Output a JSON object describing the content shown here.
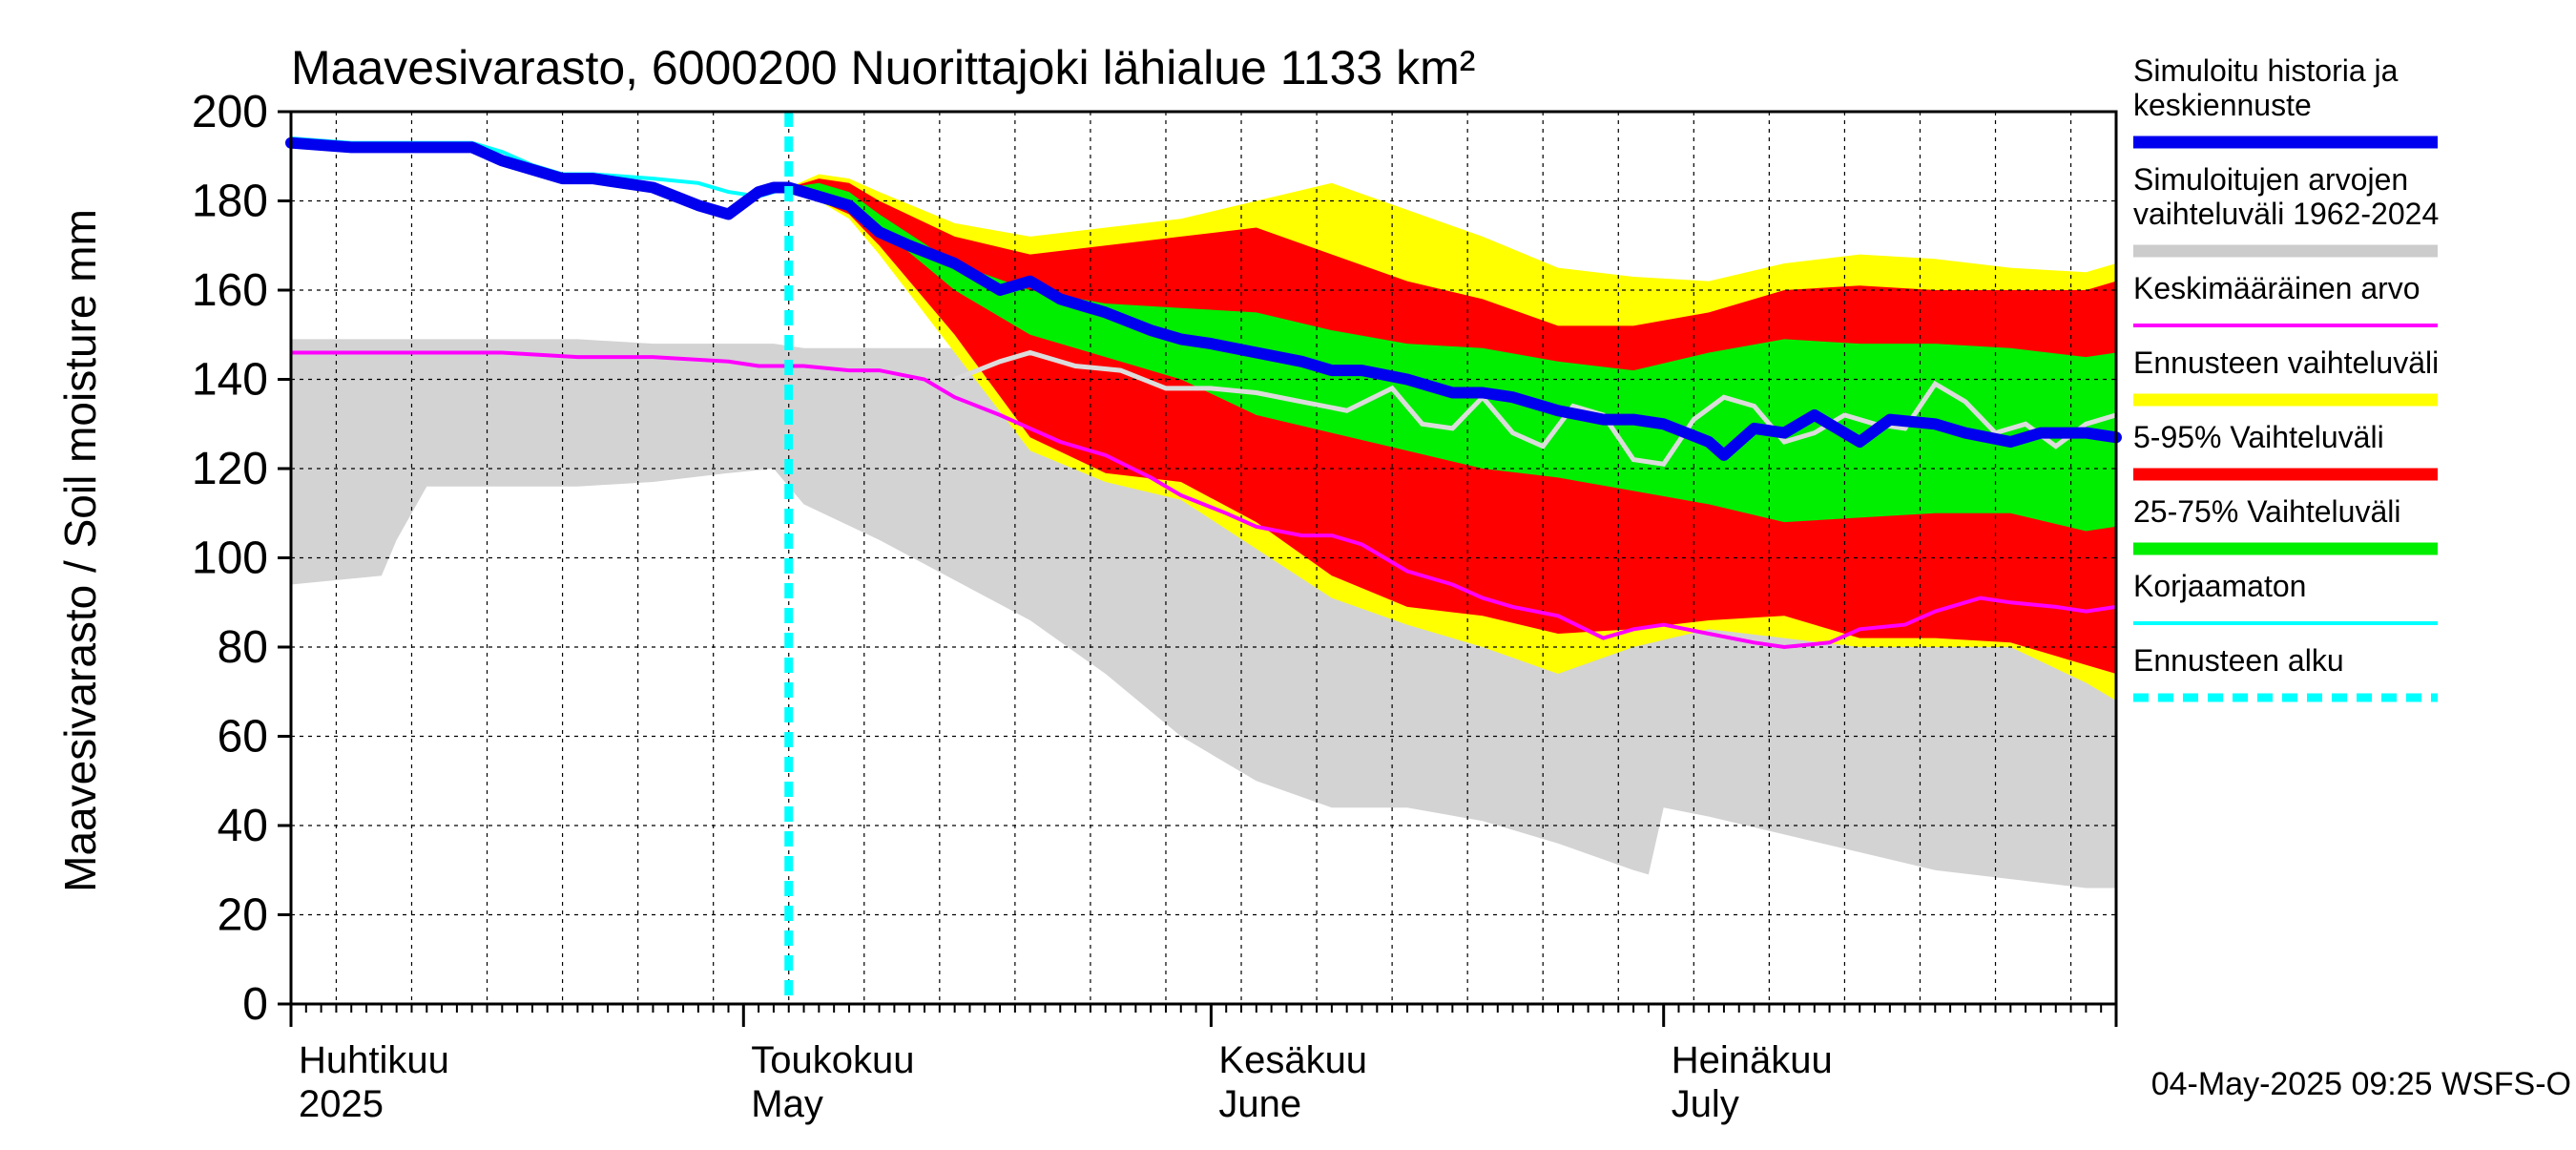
{
  "chart_data": {
    "type": "area",
    "title": "Maavesivarasto, 6000200 Nuorittajoki lähialue 1133 km²",
    "ylabel": "Maavesivarasto / Soil moisture   mm",
    "ylim": [
      0,
      200
    ],
    "yticks": [
      0,
      20,
      40,
      60,
      80,
      100,
      120,
      140,
      160,
      180,
      200
    ],
    "x_unit": "day of year 2025",
    "xlim": [
      91,
      212
    ],
    "month_labels": [
      {
        "fi": "Huhtikuu",
        "en": "2025",
        "start_day": 91
      },
      {
        "fi": "Toukokuu",
        "en": "May",
        "start_day": 121
      },
      {
        "fi": "Kesäkuu",
        "en": "June",
        "start_day": 152
      },
      {
        "fi": "Heinäkuu",
        "en": "July",
        "start_day": 182
      }
    ],
    "forecast_start_day": 124,
    "timestamp": "04-May-2025 09:25 WSFS-O",
    "legend": [
      {
        "label": "Simuloitu historia ja keskiennuste",
        "lines": [
          "Simuloitu historia ja",
          "keskiennuste"
        ],
        "color": "#0000ee",
        "style": "thick"
      },
      {
        "label": "Simuloitujen arvojen vaihteluväli 1962-2024",
        "lines": [
          "Simuloitujen arvojen",
          "vaihteluväli 1962-2024"
        ],
        "color": "#cccccc",
        "style": "thick"
      },
      {
        "label": "Keskimääräinen arvo",
        "lines": [
          "Keskimääräinen arvo"
        ],
        "color": "#ff00ff",
        "style": "thin"
      },
      {
        "label": "Ennusteen vaihteluväli",
        "lines": [
          "Ennusteen vaihteluväli"
        ],
        "color": "#ffff00",
        "style": "thick"
      },
      {
        "label": "5-95% Vaihteluväli",
        "lines": [
          "5-95% Vaihteluväli"
        ],
        "color": "#ff0000",
        "style": "thick"
      },
      {
        "label": "25-75% Vaihteluväli",
        "lines": [
          "25-75% Vaihteluväli"
        ],
        "color": "#00ee00",
        "style": "thick"
      },
      {
        "label": "Korjaamaton",
        "lines": [
          "Korjaamaton"
        ],
        "color": "#00ffff",
        "style": "thin"
      },
      {
        "label": "Ennusteen alku",
        "lines": [
          "Ennusteen alku"
        ],
        "color": "#00ffff",
        "style": "dashed"
      }
    ],
    "series": {
      "hist_range": {
        "name": "Simuloitujen arvojen vaihteluväli 1962-2024",
        "x": [
          91,
          94,
          97,
          98,
          100,
          101,
          105,
          110,
          115,
          120,
          123,
          125,
          130,
          135,
          140,
          145,
          150,
          155,
          160,
          165,
          170,
          175,
          180,
          181,
          182,
          185,
          190,
          195,
          200,
          205,
          210,
          212
        ],
        "upper": [
          149,
          149,
          149,
          149,
          149,
          149,
          149,
          149,
          148,
          148,
          148,
          147,
          147,
          147,
          147,
          147,
          147,
          146,
          146,
          146,
          145,
          145,
          145,
          145,
          145,
          145,
          145,
          145,
          145,
          145,
          145,
          145
        ],
        "lower": [
          94,
          95,
          96,
          104,
          116,
          116,
          116,
          116,
          117,
          119,
          120,
          112,
          104,
          95,
          86,
          74,
          60,
          50,
          44,
          44,
          41,
          36,
          30,
          29,
          44,
          42,
          38,
          34,
          30,
          28,
          26,
          26
        ]
      },
      "forecast_yellow": {
        "name": "Ennusteen vaihteluväli",
        "x": [
          124,
          126,
          128,
          130,
          135,
          140,
          145,
          150,
          155,
          160,
          165,
          170,
          175,
          180,
          185,
          190,
          195,
          200,
          205,
          210,
          212
        ],
        "upper": [
          183,
          186,
          185,
          182,
          175,
          172,
          174,
          176,
          180,
          184,
          178,
          172,
          165,
          163,
          162,
          166,
          168,
          167,
          165,
          164,
          166
        ],
        "lower": [
          183,
          180,
          176,
          168,
          146,
          124,
          117,
          113,
          102,
          91,
          85,
          80,
          74,
          80,
          84,
          82,
          80,
          80,
          80,
          72,
          68
        ]
      },
      "forecast_red": {
        "name": "5-95% Vaihteluväli",
        "x": [
          124,
          126,
          128,
          130,
          135,
          140,
          145,
          150,
          155,
          160,
          165,
          170,
          175,
          180,
          185,
          190,
          195,
          200,
          205,
          210,
          212
        ],
        "upper": [
          183,
          185,
          184,
          180,
          172,
          168,
          170,
          172,
          174,
          168,
          162,
          158,
          152,
          152,
          155,
          160,
          161,
          160,
          160,
          160,
          162
        ],
        "lower": [
          183,
          180,
          177,
          170,
          150,
          127,
          119,
          117,
          108,
          96,
          89,
          87,
          83,
          84,
          86,
          87,
          82,
          82,
          81,
          76,
          74
        ]
      },
      "forecast_green": {
        "name": "25-75% Vaihteluväli",
        "x": [
          124,
          126,
          128,
          130,
          135,
          140,
          145,
          150,
          155,
          160,
          165,
          170,
          175,
          180,
          185,
          190,
          195,
          200,
          205,
          210,
          212
        ],
        "upper": [
          183,
          184,
          182,
          177,
          166,
          160,
          157,
          156,
          155,
          151,
          148,
          147,
          144,
          142,
          146,
          149,
          148,
          148,
          147,
          145,
          146
        ],
        "lower": [
          183,
          182,
          180,
          174,
          160,
          150,
          145,
          140,
          132,
          128,
          124,
          120,
          118,
          115,
          112,
          108,
          109,
          110,
          110,
          106,
          107
        ]
      },
      "simulated": {
        "name": "Simuloitu historia ja keskiennuste",
        "x": [
          91,
          95,
          100,
          103,
          105,
          107,
          109,
          111,
          115,
          118,
          120,
          122,
          123,
          124,
          125,
          128,
          130,
          132,
          135,
          138,
          140,
          142,
          145,
          148,
          150,
          152,
          155,
          158,
          160,
          162,
          165,
          168,
          170,
          172,
          175,
          178,
          180,
          182,
          185,
          186,
          188,
          190,
          192,
          195,
          197,
          200,
          202,
          205,
          207,
          210,
          212
        ],
        "y": [
          193,
          192,
          192,
          192,
          189,
          187,
          185,
          185,
          183,
          179,
          177,
          182,
          183,
          183,
          182,
          179,
          173,
          170,
          166,
          160,
          162,
          158,
          155,
          151,
          149,
          148,
          146,
          144,
          142,
          142,
          140,
          137,
          137,
          136,
          133,
          131,
          131,
          130,
          126,
          123,
          129,
          128,
          132,
          126,
          131,
          130,
          128,
          126,
          128,
          128,
          127
        ]
      },
      "uncorrected": {
        "name": "Korjaamaton",
        "x": [
          91,
          95,
          100,
          103,
          105,
          107,
          109,
          111,
          115,
          118,
          120,
          122,
          123,
          124
        ],
        "y": [
          194,
          193,
          193,
          193,
          191,
          188,
          186,
          186,
          185,
          184,
          182,
          181,
          182,
          183
        ]
      },
      "forecast_median": {
        "name": "Ennusteen mediaani",
        "x": [
          135,
          138,
          140,
          143,
          146,
          149,
          152,
          155,
          158,
          161,
          164,
          166,
          168,
          170,
          172,
          174,
          176,
          178,
          180,
          182,
          184,
          186,
          188,
          190,
          192,
          194,
          196,
          198,
          200,
          202,
          204,
          206,
          208,
          210,
          212
        ],
        "y": [
          140,
          144,
          146,
          143,
          142,
          138,
          138,
          137,
          135,
          133,
          138,
          130,
          129,
          136,
          128,
          125,
          134,
          132,
          122,
          121,
          131,
          136,
          134,
          126,
          128,
          132,
          130,
          129,
          139,
          135,
          128,
          130,
          125,
          130,
          132
        ]
      },
      "mean": {
        "name": "Keskimääräinen arvo",
        "x": [
          91,
          95,
          100,
          105,
          110,
          115,
          120,
          122,
          125,
          128,
          130,
          133,
          135,
          138,
          140,
          142,
          145,
          148,
          150,
          153,
          155,
          158,
          160,
          162,
          165,
          168,
          170,
          172,
          175,
          178,
          180,
          182,
          185,
          188,
          190,
          193,
          195,
          198,
          200,
          203,
          205,
          208,
          210,
          212
        ],
        "y": [
          146,
          146,
          146,
          146,
          145,
          145,
          144,
          143,
          143,
          142,
          142,
          140,
          136,
          132,
          129,
          126,
          123,
          118,
          114,
          110,
          107,
          105,
          105,
          103,
          97,
          94,
          91,
          89,
          87,
          82,
          84,
          85,
          83,
          81,
          80,
          81,
          84,
          85,
          88,
          91,
          90,
          89,
          88,
          89
        ]
      }
    }
  }
}
